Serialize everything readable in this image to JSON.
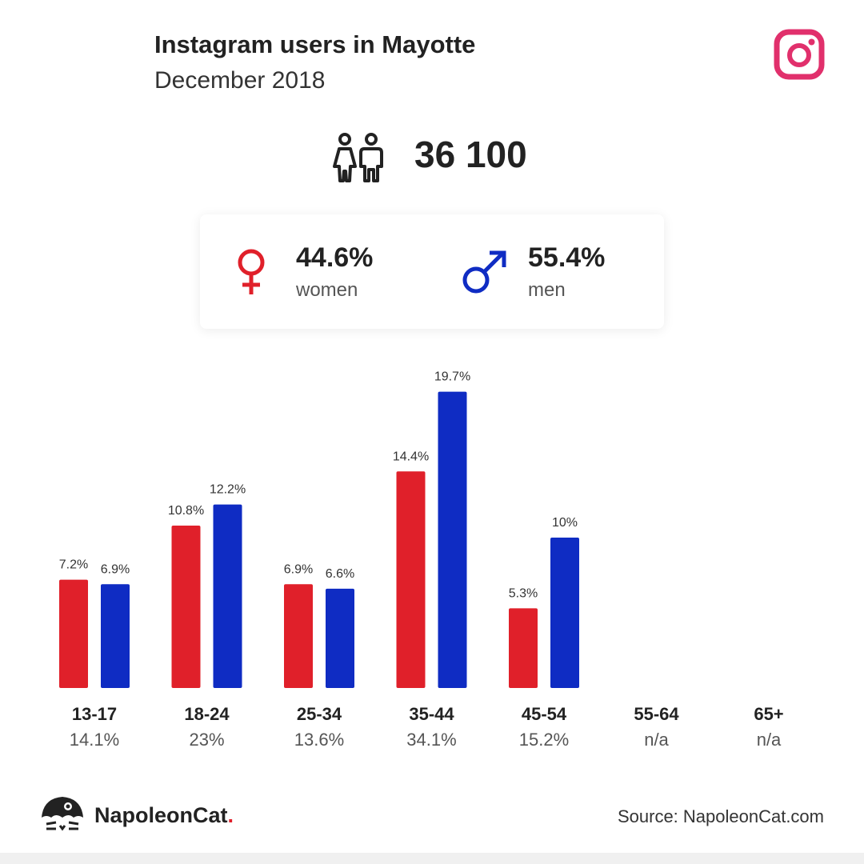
{
  "header": {
    "title": "Instagram users in Mayotte",
    "subtitle": "December 2018"
  },
  "colors": {
    "flag_blue": "#002395",
    "flag_red": "#ef2b3d",
    "women": "#e0202a",
    "men": "#0f2cc3",
    "instagram": "#e1306c"
  },
  "icons": {
    "flag": "france-flag-icon",
    "instagram": "instagram-icon",
    "people": "people-icon",
    "female": "female-symbol-icon",
    "male": "male-symbol-icon",
    "logo": "napoleoncat-logo-icon"
  },
  "summary": {
    "total": "36 100",
    "women_pct": "44.6%",
    "women_label": "women",
    "men_pct": "55.4%",
    "men_label": "men"
  },
  "chart_data": {
    "type": "bar",
    "categories": [
      "13-17",
      "18-24",
      "25-34",
      "35-44",
      "45-54",
      "55-64",
      "65+"
    ],
    "totals": [
      "14.1%",
      "23%",
      "13.6%",
      "34.1%",
      "15.2%",
      "n/a",
      "n/a"
    ],
    "series": [
      {
        "values": [
          7.2,
          10.8,
          6.9,
          14.4,
          5.3,
          null,
          null
        ],
        "labels": [
          "7.2%",
          "10.8%",
          "6.9%",
          "14.4%",
          "5.3%",
          "",
          ""
        ]
      },
      {
        "values": [
          6.9,
          12.2,
          6.6,
          19.7,
          10,
          null,
          null
        ],
        "labels": [
          "6.9%",
          "12.2%",
          "6.6%",
          "19.7%",
          "10%",
          "",
          ""
        ]
      }
    ],
    "ylim": [
      0,
      20
    ],
    "grid": false
  },
  "footer": {
    "brand": "NapoleonCat",
    "brand_dot": ".",
    "source": "Source: NapoleonCat.com"
  }
}
